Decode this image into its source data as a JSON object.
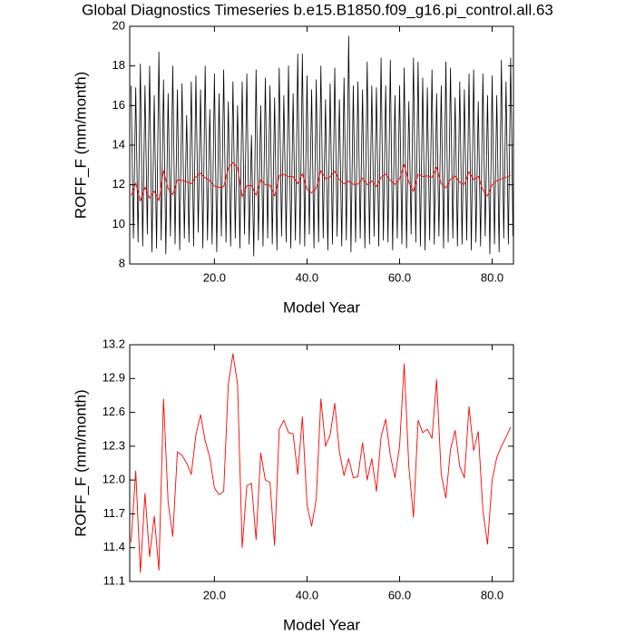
{
  "chart_data": [
    {
      "type": "line",
      "title": "Global Diagnostics Timeseries b.e15.B1850.f09_g16.pi_control.all.63",
      "y_label": "ROFF_F (mm/month)",
      "x_label": "Model Year",
      "xlim": [
        1.7,
        84.6
      ],
      "xticks": [
        {
          "value": 20,
          "label": "20.0"
        },
        {
          "value": 40,
          "label": "40.0"
        },
        {
          "value": 60,
          "label": "60.0"
        },
        {
          "value": 80,
          "label": "80.0"
        }
      ],
      "ylim": [
        8,
        20
      ],
      "yticks": [
        8,
        10,
        12,
        14,
        16,
        18,
        20
      ],
      "series": [
        {
          "color": "#000000",
          "x": [
            2,
            2.5,
            3,
            3.5,
            4,
            4.5,
            5,
            5.5,
            6,
            6.5,
            7,
            7.5,
            8,
            8.5,
            9,
            9.5,
            10,
            10.5,
            11,
            11.5,
            12,
            12.5,
            13,
            13.5,
            14,
            14.5,
            15,
            15.5,
            16,
            16.5,
            17,
            17.5,
            18,
            18.5,
            19,
            19.5,
            20,
            20.5,
            21,
            21.5,
            22,
            22.5,
            23,
            23.5,
            24,
            24.5,
            25,
            25.5,
            26,
            26.5,
            27,
            27.5,
            28,
            28.5,
            29,
            29.5,
            30,
            30.5,
            31,
            31.5,
            32,
            32.5,
            33,
            33.5,
            34,
            34.5,
            35,
            35.5,
            36,
            36.5,
            37,
            37.5,
            38,
            38.5,
            39,
            39.5,
            40,
            40.5,
            41,
            41.5,
            42,
            42.5,
            43,
            43.5,
            44,
            44.5,
            45,
            45.5,
            46,
            46.5,
            47,
            47.5,
            48,
            48.5,
            49,
            49.5,
            50,
            50.5,
            51,
            51.5,
            52,
            52.5,
            53,
            53.5,
            54,
            54.5,
            55,
            55.5,
            56,
            56.5,
            57,
            57.5,
            58,
            58.5,
            59,
            59.5,
            60,
            60.5,
            61,
            61.5,
            62,
            62.5,
            63,
            63.5,
            64,
            64.5,
            65,
            65.5,
            66,
            66.5,
            67,
            67.5,
            68,
            68.5,
            69,
            69.5,
            70,
            70.5,
            71,
            71.5,
            72,
            72.5,
            73,
            73.5,
            74,
            74.5,
            75,
            75.5,
            76,
            76.5,
            77,
            77.5,
            78,
            78.5,
            79,
            79.5,
            80,
            80.5,
            81,
            81.5,
            82,
            82.5,
            83,
            83.5,
            84,
            84.5
          ],
          "values": [
            17.0,
            9.3,
            16.9,
            9.1,
            18.1,
            8.9,
            17.0,
            9.5,
            18.0,
            8.6,
            16.5,
            8.8,
            18.7,
            9.2,
            17.3,
            8.5,
            16.6,
            9.4,
            18.0,
            9.0,
            16.8,
            8.7,
            17.1,
            9.3,
            15.5,
            9.1,
            17.2,
            8.9,
            17.5,
            9.6,
            16.8,
            8.8,
            18.0,
            9.2,
            15.8,
            9.0,
            17.6,
            8.6,
            16.6,
            9.4,
            17.8,
            9.1,
            16.2,
            8.9,
            17.2,
            9.3,
            16.0,
            8.8,
            17.2,
            9.5,
            17.6,
            9.0,
            14.5,
            8.4,
            17.8,
            9.2,
            16.0,
            8.9,
            17.4,
            9.3,
            17.0,
            9.0,
            16.4,
            8.7,
            17.9,
            9.4,
            16.5,
            9.1,
            18.0,
            8.8,
            16.6,
            9.2,
            18.6,
            9.0,
            18.6,
            8.9,
            17.5,
            9.5,
            16.8,
            8.8,
            17.3,
            9.1,
            18.0,
            9.3,
            16.3,
            8.7,
            17.1,
            9.0,
            17.9,
            9.4,
            16.3,
            8.9,
            17.4,
            9.2,
            19.5,
            8.6,
            17.0,
            9.1,
            17.2,
            9.3,
            16.8,
            8.8,
            18.2,
            9.0,
            17.0,
            9.4,
            16.9,
            8.9,
            18.4,
            9.2,
            17.0,
            9.1,
            18.3,
            8.7,
            16.5,
            9.3,
            17.0,
            9.0,
            17.9,
            8.8,
            16.2,
            9.5,
            18.4,
            9.1,
            18.2,
            8.9,
            17.4,
            8.7,
            16.9,
            9.2,
            17.8,
            9.0,
            16.6,
            9.4,
            17.0,
            8.8,
            18.2,
            9.1,
            17.9,
            9.3,
            16.4,
            8.9,
            17.2,
            9.0,
            16.8,
            9.2,
            17.6,
            8.7,
            17.8,
            9.1,
            16.2,
            8.9,
            17.6,
            9.4,
            16.5,
            8.5,
            17.5,
            9.0,
            16.5,
            8.6,
            18.3,
            9.3,
            17.2,
            9.0,
            18.4,
            9.4
          ]
        },
        {
          "color": "#ff0000",
          "x": [
            2,
            3,
            4,
            5,
            6,
            7,
            8,
            9,
            10,
            11,
            12,
            13,
            14,
            15,
            16,
            17,
            18,
            19,
            20,
            21,
            22,
            23,
            24,
            25,
            26,
            27,
            28,
            29,
            30,
            31,
            32,
            33,
            34,
            35,
            36,
            37,
            38,
            39,
            40,
            41,
            42,
            43,
            44,
            45,
            46,
            47,
            48,
            49,
            50,
            51,
            52,
            53,
            54,
            55,
            56,
            57,
            58,
            59,
            60,
            61,
            62,
            63,
            64,
            65,
            66,
            67,
            68,
            69,
            70,
            71,
            72,
            73,
            74,
            75,
            76,
            77,
            78,
            79,
            80,
            81,
            82,
            83,
            84
          ],
          "values": [
            11.45,
            12.08,
            11.18,
            11.88,
            11.32,
            11.68,
            11.2,
            12.72,
            11.8,
            11.5,
            12.25,
            12.22,
            12.15,
            12.05,
            12.4,
            12.58,
            12.35,
            12.2,
            11.93,
            11.87,
            11.9,
            12.85,
            13.12,
            12.85,
            11.4,
            11.95,
            11.97,
            11.47,
            12.24,
            12.0,
            11.98,
            11.42,
            12.45,
            12.53,
            12.42,
            12.41,
            12.05,
            12.56,
            11.78,
            11.59,
            11.83,
            12.72,
            12.3,
            12.4,
            12.68,
            12.25,
            12.04,
            12.19,
            12.02,
            12.03,
            12.33,
            12.0,
            12.19,
            11.9,
            12.38,
            12.54,
            12.22,
            12.02,
            12.3,
            13.03,
            12.12,
            11.67,
            12.53,
            12.42,
            12.45,
            12.37,
            12.89,
            12.05,
            11.84,
            12.27,
            12.44,
            12.12,
            12.02,
            12.65,
            12.26,
            12.43,
            11.73,
            11.43,
            12.0,
            12.2,
            12.3,
            12.38,
            12.47
          ]
        }
      ]
    },
    {
      "type": "line",
      "y_label": "ROFF_F (mm/month)",
      "x_label": "Model Year",
      "xlim": [
        1.7,
        84.6
      ],
      "xticks": [
        {
          "value": 20,
          "label": "20.0"
        },
        {
          "value": 40,
          "label": "40.0"
        },
        {
          "value": 60,
          "label": "60.0"
        },
        {
          "value": 80,
          "label": "80.0"
        }
      ],
      "ylim": [
        11.1,
        13.2
      ],
      "yticks": [
        11.1,
        11.4,
        11.7,
        {
          "value": 12,
          "label": "12.0"
        },
        12.3,
        12.6,
        12.9,
        13.2
      ],
      "series": [
        {
          "color": "#ff0000",
          "x": [
            2,
            3,
            4,
            5,
            6,
            7,
            8,
            9,
            10,
            11,
            12,
            13,
            14,
            15,
            16,
            17,
            18,
            19,
            20,
            21,
            22,
            23,
            24,
            25,
            26,
            27,
            28,
            29,
            30,
            31,
            32,
            33,
            34,
            35,
            36,
            37,
            38,
            39,
            40,
            41,
            42,
            43,
            44,
            45,
            46,
            47,
            48,
            49,
            50,
            51,
            52,
            53,
            54,
            55,
            56,
            57,
            58,
            59,
            60,
            61,
            62,
            63,
            64,
            65,
            66,
            67,
            68,
            69,
            70,
            71,
            72,
            73,
            74,
            75,
            76,
            77,
            78,
            79,
            80,
            81,
            82,
            83,
            84
          ],
          "values": [
            11.45,
            12.08,
            11.18,
            11.88,
            11.32,
            11.68,
            11.2,
            12.72,
            11.8,
            11.5,
            12.25,
            12.22,
            12.15,
            12.05,
            12.4,
            12.58,
            12.35,
            12.2,
            11.93,
            11.87,
            11.9,
            12.85,
            13.12,
            12.85,
            11.4,
            11.95,
            11.97,
            11.47,
            12.24,
            12.0,
            11.98,
            11.42,
            12.45,
            12.53,
            12.42,
            12.41,
            12.05,
            12.56,
            11.78,
            11.59,
            11.83,
            12.72,
            12.3,
            12.4,
            12.68,
            12.25,
            12.04,
            12.19,
            12.02,
            12.03,
            12.33,
            12.0,
            12.19,
            11.9,
            12.38,
            12.54,
            12.22,
            12.02,
            12.3,
            13.03,
            12.12,
            11.67,
            12.53,
            12.42,
            12.45,
            12.37,
            12.89,
            12.05,
            11.84,
            12.27,
            12.44,
            12.12,
            12.02,
            12.65,
            12.26,
            12.43,
            11.73,
            11.43,
            12.0,
            12.2,
            12.3,
            12.38,
            12.47
          ]
        }
      ]
    }
  ]
}
